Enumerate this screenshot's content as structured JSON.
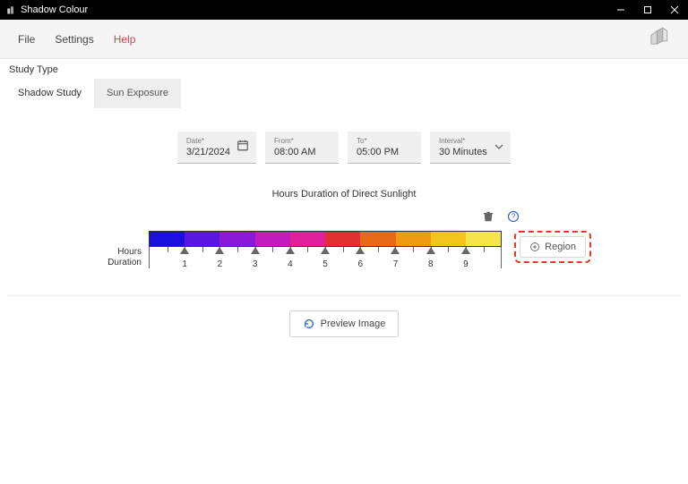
{
  "window": {
    "title": "Shadow Colour"
  },
  "menu": {
    "file": "File",
    "settings": "Settings",
    "help": "Help"
  },
  "study": {
    "label": "Study Type",
    "tabs": [
      {
        "label": "Shadow Study",
        "active": true
      },
      {
        "label": "Sun Exposure",
        "active": false
      }
    ]
  },
  "params": {
    "date": {
      "label": "Date*",
      "value": "3/21/2024"
    },
    "from": {
      "label": "From*",
      "value": "08:00 AM"
    },
    "to": {
      "label": "To*",
      "value": "05:00 PM"
    },
    "interval": {
      "label": "Interval*",
      "value": "30 Minutes"
    }
  },
  "chart": {
    "title": "Hours Duration of Direct Sunlight",
    "axis_label_line1": "Hours",
    "axis_label_line2": "Duration",
    "segments": [
      "#1a0fde",
      "#5a17e0",
      "#8d18d6",
      "#c21bc0",
      "#e0209a",
      "#e03030",
      "#e66a16",
      "#f09a12",
      "#f2c41c",
      "#f4e64a"
    ],
    "border_color": "#333333",
    "tick_labels": [
      "1",
      "2",
      "3",
      "4",
      "5",
      "6",
      "7",
      "8",
      "9"
    ],
    "region_label": "Region"
  },
  "preview": {
    "label": "Preview Image"
  }
}
